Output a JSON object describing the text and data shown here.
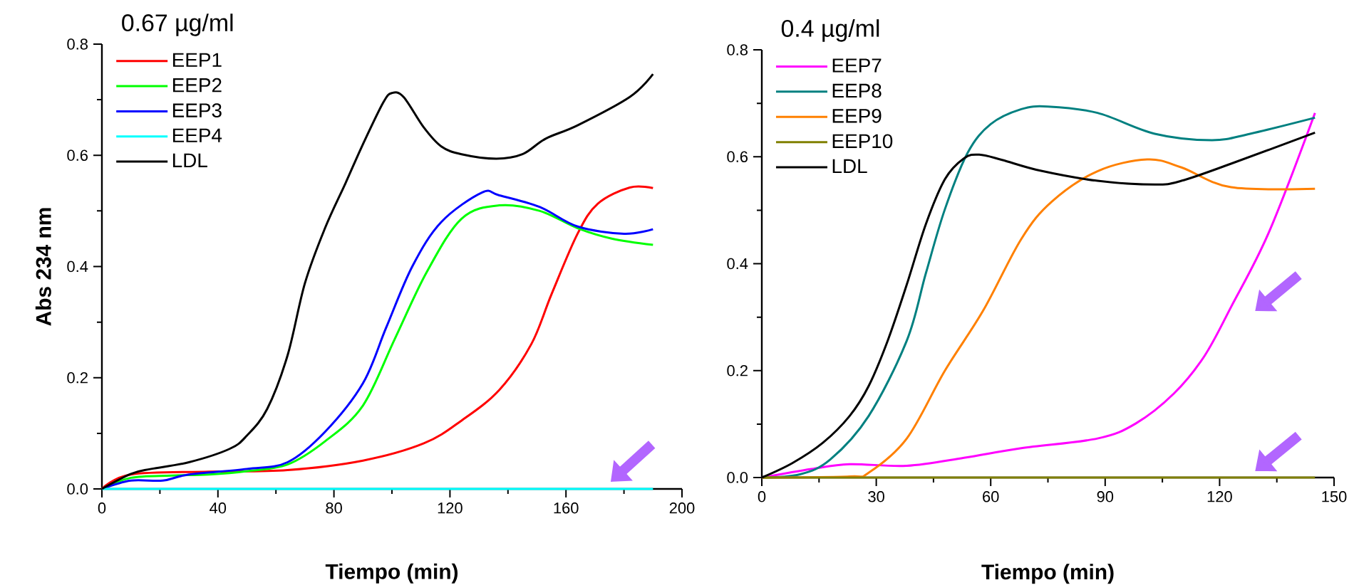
{
  "chart_data": [
    {
      "type": "line",
      "title": "0.67 µg/ml",
      "xlabel": "Tiempo (min)",
      "ylabel": "Abs 234 nm",
      "xlim": [
        0,
        200
      ],
      "ylim": [
        0,
        0.8
      ],
      "xticks": [
        0,
        40,
        80,
        120,
        160,
        200
      ],
      "yticks": [
        {
          "value": 0,
          "label": "0.0"
        },
        {
          "value": 0.2,
          "label": "0.2"
        },
        {
          "value": 0.4,
          "label": "0.4"
        },
        {
          "value": 0.6,
          "label": "0.6"
        },
        {
          "value": 0.8,
          "label": "0.8"
        }
      ],
      "legend": "top left",
      "grid": false,
      "marker": "none",
      "line_style": "solid",
      "series": [
        {
          "name": "EEP1",
          "color": "#ff0000",
          "x": [
            0,
            10,
            37,
            64,
            90,
            111,
            124,
            137,
            148,
            155,
            164,
            171,
            182,
            190
          ],
          "values": [
            0,
            0.026,
            0.031,
            0.034,
            0.051,
            0.082,
            0.123,
            0.178,
            0.26,
            0.35,
            0.459,
            0.513,
            0.542,
            0.541
          ]
        },
        {
          "name": "EEP2",
          "color": "#00ff00",
          "x": [
            0,
            10,
            24,
            37,
            50,
            64,
            77,
            90,
            101,
            112,
            124,
            137,
            151,
            164,
            176,
            190
          ],
          "values": [
            0,
            0.02,
            0.024,
            0.026,
            0.032,
            0.044,
            0.086,
            0.15,
            0.27,
            0.39,
            0.486,
            0.51,
            0.5,
            0.469,
            0.45,
            0.439
          ]
        },
        {
          "name": "EEP3",
          "color": "#0000ff",
          "x": [
            0,
            10,
            21,
            30,
            50,
            64,
            77,
            90,
            98,
            107,
            117,
            131,
            137,
            151,
            164,
            180,
            190
          ],
          "values": [
            0,
            0.015,
            0.015,
            0.026,
            0.036,
            0.048,
            0.103,
            0.19,
            0.29,
            0.4,
            0.48,
            0.533,
            0.528,
            0.507,
            0.472,
            0.459,
            0.467
          ]
        },
        {
          "name": "EEP4",
          "color": "#00ffff",
          "x": [
            0,
            190
          ],
          "values": [
            0,
            0
          ]
        },
        {
          "name": "LDL",
          "color": "#000000",
          "x": [
            0,
            10,
            17,
            30,
            44,
            50,
            57,
            64,
            70,
            77,
            84,
            90,
            97,
            100,
            104,
            111,
            117,
            124,
            136,
            145,
            153,
            164,
            182,
            190
          ],
          "values": [
            0,
            0.027,
            0.036,
            0.048,
            0.072,
            0.096,
            0.144,
            0.24,
            0.37,
            0.47,
            0.55,
            0.62,
            0.695,
            0.712,
            0.705,
            0.65,
            0.616,
            0.602,
            0.594,
            0.602,
            0.63,
            0.654,
            0.705,
            0.746
          ]
        }
      ]
    },
    {
      "type": "line",
      "title": "0.4 µg/ml",
      "xlabel": "Tiempo (min)",
      "xlim": [
        0,
        150
      ],
      "ylim": [
        0,
        0.8
      ],
      "xticks": [
        0,
        30,
        60,
        90,
        120,
        150
      ],
      "yticks": [
        {
          "value": 0,
          "label": "0.0"
        },
        {
          "value": 0.2,
          "label": "0.2"
        },
        {
          "value": 0.4,
          "label": "0.4"
        },
        {
          "value": 0.6,
          "label": "0.6"
        },
        {
          "value": 0.8,
          "label": "0.8"
        }
      ],
      "legend": "top left",
      "grid": false,
      "marker": "none",
      "line_style": "solid",
      "series": [
        {
          "name": "EEP7",
          "color": "#ff00ff",
          "x": [
            0,
            13,
            23,
            38,
            53,
            68,
            88,
            98,
            108,
            116,
            123,
            133,
            145
          ],
          "values": [
            0,
            0.016,
            0.025,
            0.022,
            0.037,
            0.055,
            0.073,
            0.101,
            0.157,
            0.227,
            0.319,
            0.46,
            0.682
          ]
        },
        {
          "name": "EEP8",
          "color": "#008080",
          "x": [
            0,
            10,
            18,
            28,
            38,
            43,
            48,
            54,
            60,
            68,
            75,
            88,
            103,
            118,
            128,
            145
          ],
          "values": [
            0,
            0.006,
            0.034,
            0.115,
            0.256,
            0.382,
            0.502,
            0.608,
            0.661,
            0.689,
            0.694,
            0.682,
            0.643,
            0.631,
            0.643,
            0.673
          ]
        },
        {
          "name": "EEP9",
          "color": "#ff8000",
          "x": [
            0,
            23,
            28,
            38,
            48,
            58,
            68,
            76,
            88,
            101,
            110,
            123,
            145
          ],
          "values": [
            0,
            0.002,
            0.009,
            0.073,
            0.2,
            0.312,
            0.446,
            0.516,
            0.573,
            0.595,
            0.58,
            0.543,
            0.54
          ]
        },
        {
          "name": "EEP10",
          "color": "#808000",
          "x": [
            0,
            145
          ],
          "values": [
            0,
            0
          ]
        },
        {
          "name": "LDL",
          "color": "#000000",
          "x": [
            0,
            8,
            16,
            23,
            28,
            33,
            38,
            43,
            48,
            53,
            57,
            63,
            73,
            88,
            103,
            110,
            123,
            145
          ],
          "values": [
            0,
            0.027,
            0.065,
            0.115,
            0.171,
            0.256,
            0.361,
            0.474,
            0.558,
            0.597,
            0.604,
            0.594,
            0.574,
            0.555,
            0.548,
            0.555,
            0.587,
            0.645
          ]
        }
      ]
    }
  ]
}
